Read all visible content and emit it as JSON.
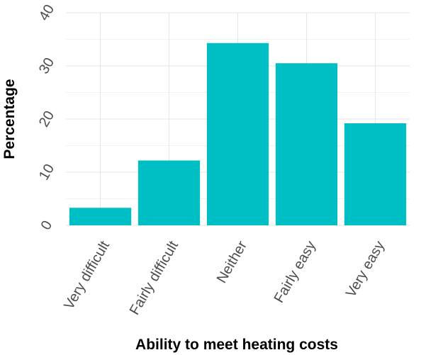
{
  "chart_data": {
    "type": "bar",
    "xlabel": "Ability to meet heating costs",
    "ylabel": "Percentage",
    "categories": [
      "Very difficult",
      "Fairly difficult",
      "Neither",
      "Fairly easy",
      "Very easy"
    ],
    "values": [
      3.3,
      12.2,
      34.3,
      30.5,
      19.2
    ],
    "ylim": [
      0,
      40
    ],
    "yticks": [
      "0",
      "10",
      "20",
      "30",
      "40"
    ],
    "grid": true,
    "bar_color": "#00BFC4",
    "background": "#ffffff"
  }
}
